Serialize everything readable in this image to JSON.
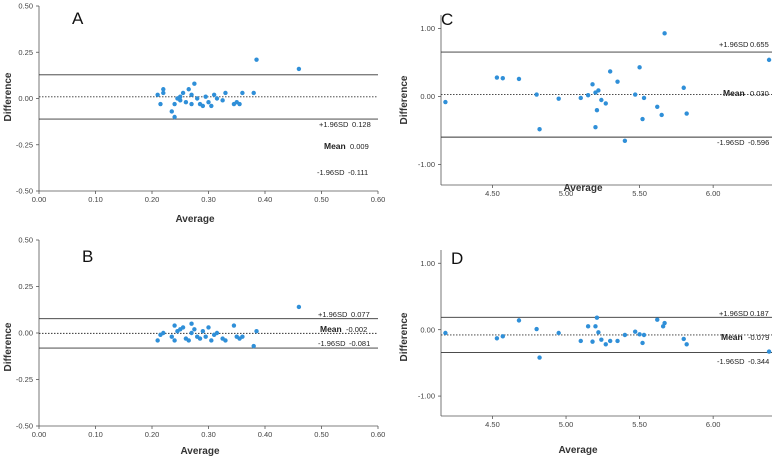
{
  "figure": {
    "type": "bland-altman-grid"
  },
  "colors": {
    "point": "#2f8fd8",
    "line": "#333333",
    "axis": "#555555"
  },
  "chart_data": [
    {
      "type": "scatter",
      "panel": "A",
      "xlabel": "Average",
      "ylabel": "Difference",
      "xlim": [
        0.0,
        0.6
      ],
      "ylim": [
        -0.5,
        0.5
      ],
      "xticks": [
        "0.00",
        "0.10",
        "0.20",
        "0.30",
        "0.40",
        "0.50",
        "0.60"
      ],
      "xtick_values": [
        0.0,
        0.1,
        0.2,
        0.3,
        0.4,
        0.5,
        0.6
      ],
      "yticks": [
        "0.50",
        "0.25",
        "0.00",
        "-0.25",
        "-0.50"
      ],
      "ytick_values": [
        0.5,
        0.25,
        0.0,
        -0.25,
        -0.5
      ],
      "mean": {
        "label": "Mean",
        "text": "0.009",
        "value": 0.009
      },
      "upper": {
        "label": "+1.96SD",
        "text": "0.128",
        "value": 0.128
      },
      "lower": {
        "label": "-1.96SD",
        "text": "-0.111",
        "value": -0.111
      },
      "x": [
        0.21,
        0.215,
        0.22,
        0.22,
        0.235,
        0.24,
        0.24,
        0.245,
        0.25,
        0.25,
        0.255,
        0.26,
        0.265,
        0.27,
        0.27,
        0.275,
        0.28,
        0.285,
        0.29,
        0.295,
        0.3,
        0.305,
        0.31,
        0.315,
        0.325,
        0.33,
        0.345,
        0.35,
        0.355,
        0.36,
        0.38,
        0.385,
        0.46
      ],
      "y": [
        0.02,
        -0.03,
        0.03,
        0.05,
        -0.07,
        -0.1,
        -0.03,
        0.0,
        0.01,
        -0.01,
        0.03,
        -0.02,
        0.05,
        0.02,
        -0.03,
        0.08,
        0.0,
        -0.03,
        -0.04,
        0.01,
        -0.02,
        -0.04,
        0.02,
        0.0,
        -0.01,
        0.03,
        -0.03,
        -0.02,
        -0.03,
        0.03,
        0.03,
        0.21,
        0.16
      ]
    },
    {
      "type": "scatter",
      "panel": "B",
      "xlabel": "Average",
      "ylabel": "Difference",
      "xlim": [
        0.0,
        0.6
      ],
      "ylim": [
        -0.5,
        0.5
      ],
      "xticks": [
        "0.00",
        "0.10",
        "0.20",
        "0.30",
        "0.40",
        "0.50",
        "0.60"
      ],
      "xtick_values": [
        0.0,
        0.1,
        0.2,
        0.3,
        0.4,
        0.5,
        0.6
      ],
      "yticks": [
        "0.50",
        "0.25",
        "0.00",
        "-0.25",
        "-0.50"
      ],
      "ytick_values": [
        0.5,
        0.25,
        0.0,
        -0.25,
        -0.5
      ],
      "mean": {
        "label": "Mean",
        "text": "-0.002",
        "value": -0.002
      },
      "upper": {
        "label": "+1.96SD",
        "text": "0.077",
        "value": 0.077
      },
      "lower": {
        "label": "-1.96SD",
        "text": "-0.081",
        "value": -0.081
      },
      "x": [
        0.21,
        0.215,
        0.22,
        0.235,
        0.24,
        0.24,
        0.245,
        0.25,
        0.255,
        0.26,
        0.265,
        0.27,
        0.27,
        0.275,
        0.28,
        0.285,
        0.29,
        0.295,
        0.3,
        0.305,
        0.31,
        0.315,
        0.325,
        0.33,
        0.345,
        0.35,
        0.355,
        0.36,
        0.38,
        0.385,
        0.46
      ],
      "y": [
        -0.04,
        -0.01,
        0.0,
        -0.02,
        0.04,
        -0.04,
        0.01,
        0.02,
        0.03,
        -0.03,
        -0.04,
        0.05,
        0.0,
        0.02,
        -0.02,
        -0.03,
        0.01,
        -0.02,
        0.03,
        -0.04,
        -0.01,
        0.0,
        -0.03,
        -0.04,
        0.04,
        -0.02,
        -0.03,
        -0.02,
        -0.07,
        0.01,
        0.14
      ]
    },
    {
      "type": "scatter",
      "panel": "C",
      "xlabel": "Average",
      "ylabel": "Difference",
      "xlim": [
        4.15,
        6.4
      ],
      "ylim": [
        -1.3,
        1.2
      ],
      "xticks": [
        "4.50",
        "5.00",
        "5.50",
        "6.00"
      ],
      "xtick_values": [
        4.5,
        5.0,
        5.5,
        6.0
      ],
      "yticks": [
        "1.00",
        "0.00",
        "-1.00"
      ],
      "ytick_values": [
        1.0,
        0.0,
        -1.0
      ],
      "mean": {
        "label": "Mean",
        "text": "0.030",
        "value": 0.03
      },
      "upper": {
        "label": "+1.96SD",
        "text": "0.655",
        "value": 0.655
      },
      "lower": {
        "label": "-1.96SD",
        "text": "-0.596",
        "value": -0.596
      },
      "x": [
        4.18,
        4.53,
        4.57,
        4.68,
        4.8,
        4.82,
        4.95,
        5.1,
        5.15,
        5.18,
        5.2,
        5.2,
        5.21,
        5.22,
        5.24,
        5.27,
        5.3,
        5.35,
        5.4,
        5.47,
        5.5,
        5.52,
        5.53,
        5.62,
        5.65,
        5.67,
        5.8,
        5.82,
        6.38
      ],
      "y": [
        -0.08,
        0.28,
        0.27,
        0.26,
        0.03,
        -0.48,
        -0.03,
        -0.02,
        0.02,
        0.18,
        0.06,
        -0.45,
        -0.2,
        0.09,
        -0.05,
        -0.1,
        0.37,
        0.22,
        -0.65,
        0.03,
        0.43,
        -0.33,
        -0.02,
        -0.15,
        -0.27,
        0.93,
        0.13,
        -0.25,
        0.54
      ]
    },
    {
      "type": "scatter",
      "panel": "D",
      "xlabel": "Average",
      "ylabel": "Difference",
      "xlim": [
        4.15,
        6.4
      ],
      "ylim": [
        -1.3,
        1.2
      ],
      "xticks": [
        "4.50",
        "5.00",
        "5.50",
        "6.00"
      ],
      "xtick_values": [
        4.5,
        5.0,
        5.5,
        6.0
      ],
      "yticks": [
        "1.00",
        "0.00",
        "-1.00"
      ],
      "ytick_values": [
        1.0,
        0.0,
        -1.0
      ],
      "mean": {
        "label": "Mean",
        "text": "-0.079",
        "value": -0.079
      },
      "upper": {
        "label": "+1.96SD",
        "text": "0.187",
        "value": 0.187
      },
      "lower": {
        "label": "-1.96SD",
        "text": "-0.344",
        "value": -0.344
      },
      "x": [
        4.18,
        4.53,
        4.57,
        4.68,
        4.8,
        4.82,
        4.95,
        5.1,
        5.15,
        5.18,
        5.2,
        5.21,
        5.22,
        5.24,
        5.27,
        5.3,
        5.35,
        5.4,
        5.47,
        5.5,
        5.52,
        5.53,
        5.62,
        5.66,
        5.67,
        5.8,
        5.82,
        6.38
      ],
      "y": [
        -0.05,
        -0.13,
        -0.1,
        0.14,
        0.01,
        -0.42,
        -0.05,
        -0.17,
        0.05,
        -0.18,
        0.05,
        0.18,
        -0.04,
        -0.15,
        -0.22,
        -0.17,
        -0.17,
        -0.08,
        -0.03,
        -0.07,
        -0.2,
        -0.08,
        0.15,
        0.05,
        0.1,
        -0.14,
        -0.22,
        -0.33
      ]
    }
  ]
}
